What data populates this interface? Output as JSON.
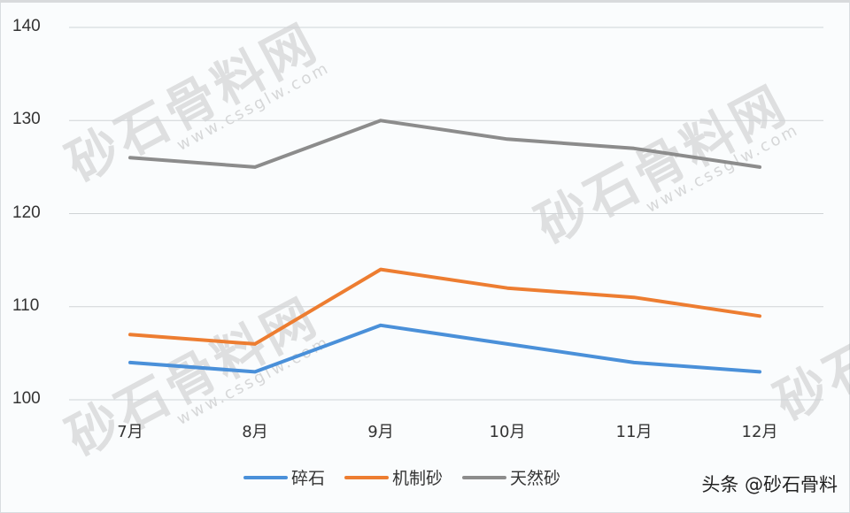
{
  "chart_data": {
    "type": "line",
    "title": "",
    "xlabel": "",
    "ylabel": "",
    "categories": [
      "7月",
      "8月",
      "9月",
      "10月",
      "11月",
      "12月"
    ],
    "series": [
      {
        "name": "碎石",
        "color": "#4a90d9",
        "values": [
          104,
          103,
          108,
          106,
          104,
          103
        ]
      },
      {
        "name": "机制砂",
        "color": "#ed7d31",
        "values": [
          107,
          106,
          114,
          112,
          111,
          109
        ]
      },
      {
        "name": "天然砂",
        "color": "#8c8c8c",
        "values": [
          126,
          125,
          130,
          128,
          127,
          125
        ]
      }
    ],
    "ylim": [
      100,
      140
    ],
    "yticks": [
      100,
      110,
      120,
      130,
      140
    ],
    "grid": true,
    "legend_position": "bottom"
  },
  "yaxis": {
    "ticks": [
      "140",
      "130",
      "120",
      "110",
      "100"
    ]
  },
  "xaxis": {
    "ticks": [
      "7月",
      "8月",
      "9月",
      "10月",
      "11月",
      "12月"
    ]
  },
  "legend": {
    "items": [
      {
        "label": "碎石",
        "color": "#4a90d9"
      },
      {
        "label": "机制砂",
        "color": "#ed7d31"
      },
      {
        "label": "天然砂",
        "color": "#8c8c8c"
      }
    ]
  },
  "watermark": {
    "text": "砂石骨料网",
    "url": "www.cssglw.com"
  },
  "credit": "头条 @砂石骨料"
}
